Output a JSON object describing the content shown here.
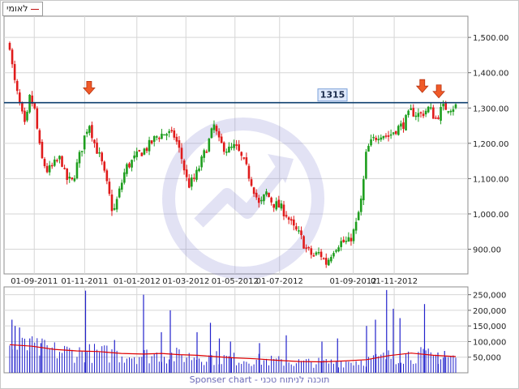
{
  "legend": {
    "label": "לאומי",
    "color": "#c01010"
  },
  "footer": {
    "text": "Sponser chart - תוכנה לניתוח טכני"
  },
  "annotation": {
    "level_label": "1315",
    "level": 1315
  },
  "colors": {
    "up": "#1e9e1e",
    "down": "#e01b1b",
    "volume": "#2222cc",
    "volume_avg": "#e00000",
    "level_line": "#0e3f6e",
    "grid": "#d6d6d6"
  },
  "chart_data": [
    {
      "type": "candlestick",
      "title": "",
      "y_ticks": [
        900,
        1000,
        1100,
        1200,
        1300,
        1400,
        1500
      ],
      "y_tick_labels": [
        "900.00",
        "1,000.00",
        "1,100.00",
        "1,200.00",
        "1,300.00",
        "1,400.00",
        "1,500.00"
      ],
      "ylim": [
        830,
        1560
      ],
      "x_tick_labels": [
        "01-09-2011",
        "01-11-2011",
        "01-01-2012",
        "01-03-2012",
        "01-05-2012",
        "01-07-2012",
        "01-09-2012",
        "01-11-2012"
      ],
      "x_tick_positions": [
        0.055,
        0.168,
        0.285,
        0.395,
        0.505,
        0.605,
        0.77,
        0.862
      ],
      "close_path": [
        [
          0.0,
          1480
        ],
        [
          0.008,
          1390
        ],
        [
          0.02,
          1320
        ],
        [
          0.035,
          1240
        ],
        [
          0.045,
          1330
        ],
        [
          0.055,
          1300
        ],
        [
          0.07,
          1160
        ],
        [
          0.085,
          1120
        ],
        [
          0.1,
          1140
        ],
        [
          0.115,
          1160
        ],
        [
          0.125,
          1100
        ],
        [
          0.14,
          1090
        ],
        [
          0.16,
          1180
        ],
        [
          0.17,
          1230
        ],
        [
          0.178,
          1260
        ],
        [
          0.19,
          1200
        ],
        [
          0.205,
          1150
        ],
        [
          0.22,
          1070
        ],
        [
          0.232,
          1000
        ],
        [
          0.245,
          1060
        ],
        [
          0.26,
          1130
        ],
        [
          0.275,
          1150
        ],
        [
          0.29,
          1170
        ],
        [
          0.31,
          1190
        ],
        [
          0.33,
          1220
        ],
        [
          0.35,
          1230
        ],
        [
          0.37,
          1220
        ],
        [
          0.385,
          1160
        ],
        [
          0.4,
          1080
        ],
        [
          0.415,
          1100
        ],
        [
          0.43,
          1150
        ],
        [
          0.445,
          1200
        ],
        [
          0.458,
          1250
        ],
        [
          0.47,
          1200
        ],
        [
          0.49,
          1180
        ],
        [
          0.505,
          1190
        ],
        [
          0.515,
          1170
        ],
        [
          0.53,
          1130
        ],
        [
          0.545,
          1080
        ],
        [
          0.56,
          1020
        ],
        [
          0.575,
          1060
        ],
        [
          0.59,
          1030
        ],
        [
          0.605,
          1020
        ],
        [
          0.62,
          1000
        ],
        [
          0.635,
          960
        ],
        [
          0.65,
          940
        ],
        [
          0.665,
          900
        ],
        [
          0.68,
          880
        ],
        [
          0.695,
          890
        ],
        [
          0.71,
          860
        ],
        [
          0.725,
          900
        ],
        [
          0.74,
          920
        ],
        [
          0.76,
          920
        ],
        [
          0.775,
          960
        ],
        [
          0.79,
          1050
        ],
        [
          0.8,
          1180
        ],
        [
          0.815,
          1210
        ],
        [
          0.83,
          1230
        ],
        [
          0.85,
          1220
        ],
        [
          0.865,
          1240
        ],
        [
          0.88,
          1250
        ],
        [
          0.9,
          1290
        ],
        [
          0.92,
          1280
        ],
        [
          0.94,
          1300
        ],
        [
          0.955,
          1270
        ],
        [
          0.97,
          1300
        ],
        [
          1.0,
          1305
        ]
      ],
      "markers": [
        {
          "label": "arrow",
          "x": 0.178,
          "value": 1325
        },
        {
          "label": "arrow",
          "x": 0.925,
          "value": 1330
        },
        {
          "label": "arrow",
          "x": 0.962,
          "value": 1315
        }
      ]
    },
    {
      "type": "bar",
      "title": "volume",
      "y_ticks": [
        50000,
        100000,
        150000,
        200000,
        250000
      ],
      "y_tick_labels": [
        "50,000",
        "100,000",
        "150,000",
        "200,000",
        "250,000"
      ],
      "ylim": [
        0,
        275000
      ],
      "spikes": [
        {
          "x": 0.005,
          "value": 170000
        },
        {
          "x": 0.012,
          "value": 150000
        },
        {
          "x": 0.022,
          "value": 145000
        },
        {
          "x": 0.045,
          "value": 110000
        },
        {
          "x": 0.07,
          "value": 95000
        },
        {
          "x": 0.17,
          "value": 263000
        },
        {
          "x": 0.235,
          "value": 105000
        },
        {
          "x": 0.3,
          "value": 250000
        },
        {
          "x": 0.34,
          "value": 130000
        },
        {
          "x": 0.36,
          "value": 200000
        },
        {
          "x": 0.42,
          "value": 130000
        },
        {
          "x": 0.45,
          "value": 160000
        },
        {
          "x": 0.47,
          "value": 110000
        },
        {
          "x": 0.495,
          "value": 100000
        },
        {
          "x": 0.56,
          "value": 95000
        },
        {
          "x": 0.62,
          "value": 120000
        },
        {
          "x": 0.7,
          "value": 100000
        },
        {
          "x": 0.735,
          "value": 110000
        },
        {
          "x": 0.8,
          "value": 150000
        },
        {
          "x": 0.82,
          "value": 170000
        },
        {
          "x": 0.845,
          "value": 265000
        },
        {
          "x": 0.86,
          "value": 205000
        },
        {
          "x": 0.875,
          "value": 175000
        },
        {
          "x": 0.93,
          "value": 220000
        },
        {
          "x": 0.96,
          "value": 65000
        },
        {
          "x": 0.975,
          "value": 70000
        }
      ],
      "avg_path": [
        [
          0.0,
          90000
        ],
        [
          0.05,
          85000
        ],
        [
          0.1,
          75000
        ],
        [
          0.15,
          70000
        ],
        [
          0.2,
          68000
        ],
        [
          0.25,
          62000
        ],
        [
          0.3,
          60000
        ],
        [
          0.34,
          62000
        ],
        [
          0.38,
          58000
        ],
        [
          0.42,
          56000
        ],
        [
          0.46,
          52000
        ],
        [
          0.5,
          48000
        ],
        [
          0.55,
          45000
        ],
        [
          0.6,
          40000
        ],
        [
          0.65,
          36000
        ],
        [
          0.7,
          35000
        ],
        [
          0.75,
          38000
        ],
        [
          0.8,
          42000
        ],
        [
          0.85,
          55000
        ],
        [
          0.9,
          63000
        ],
        [
          0.95,
          56000
        ],
        [
          1.0,
          52000
        ]
      ]
    }
  ]
}
